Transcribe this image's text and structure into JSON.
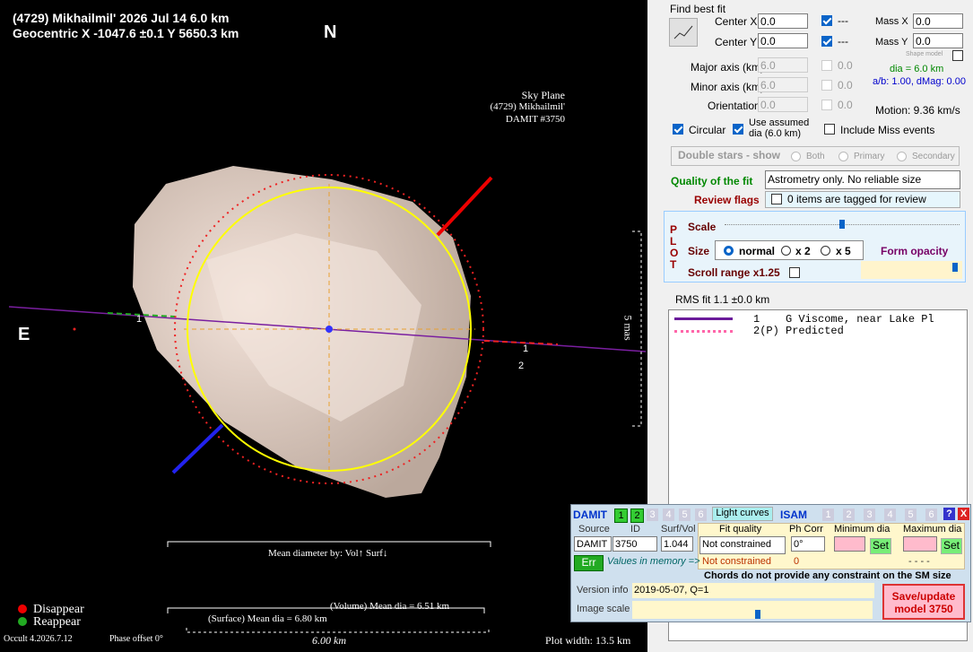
{
  "plot": {
    "header_line1": "(4729) Mikhailmil'  2026 Jul 14   6.0 km",
    "header_line2": "Geocentric X -1047.6 ±0.1  Y 5650.3 km",
    "north": "N",
    "east": "E",
    "sky_plane": "Sky Plane",
    "sky_object": "(4729) Mikhailmil'",
    "sky_model": "DAMIT #3750",
    "scale_label": "5 mas",
    "chord_1a": "1",
    "chord_1b": "1",
    "chord_2": "2",
    "mean_diameter_by": "Mean diameter by: Vol↑ Surf↓",
    "volume_dia": "(Volume) Mean dia = 6.51 km",
    "surface_dia": "(Surface) Mean dia = 6.80 km",
    "scale_km": "6.00 km",
    "disappear": "Disappear",
    "reappear": "Reappear",
    "version": "Occult 4.2026.7.12",
    "phase_offset": "Phase offset 0°",
    "plot_width": "Plot width: 13.5 km"
  },
  "controls": {
    "find_best_fit": "Find best fit",
    "center_x": "Center X",
    "center_x_val": "0.0",
    "center_x_unc": "---",
    "mass_x": "Mass X",
    "mass_x_val": "0.0",
    "center_y": "Center Y",
    "center_y_val": "0.0",
    "center_y_unc": "---",
    "mass_y": "Mass Y",
    "mass_y_val": "0.0",
    "shape_model": "Shape model",
    "dia": "dia = 6.0 km",
    "ab_dmag": "a/b: 1.00, dMag: 0.00",
    "major_axis": "Major axis (km)",
    "major_val": "6.0",
    "major_unc": "0.0",
    "minor_axis": "Minor axis (km)",
    "minor_val": "6.0",
    "minor_unc": "0.0",
    "orientation": "Orientation",
    "orient_val": "0.0",
    "orient_unc": "0.0",
    "motion": "Motion: 9.36 km/s",
    "circular": "Circular",
    "use_assumed": "Use assumed dia (6.0 km)",
    "include_miss": "Include Miss events",
    "double_stars": "Double stars - show",
    "both": "Both",
    "primary": "Primary",
    "secondary": "Secondary",
    "quality": "Quality of the fit",
    "quality_val": "Astrometry only. No reliable size",
    "review_flags": "Review flags",
    "review_val": "0 items are tagged for review",
    "plot_p": "P",
    "plot_l": "L",
    "plot_o": "O",
    "plot_t": "T",
    "scale": "Scale",
    "size": "Size",
    "normal": "normal",
    "x2": "x 2",
    "x5": "x 5",
    "form_opacity": "Form opacity",
    "scroll_range": "Scroll range x1.25",
    "rms": "RMS fit 1.1 ±0.0 km",
    "legend_1": "1    G Viscome, near Lake Pl",
    "legend_2": "2(P) Predicted"
  },
  "damit": {
    "damit": "DAMIT",
    "d1": "1",
    "d2": "2",
    "d3": "3",
    "d4": "4",
    "d5": "5",
    "d6": "6",
    "light_curves": "Light curves",
    "isam": "ISAM",
    "i1": "1",
    "i2": "2",
    "i3": "3",
    "i4": "4",
    "i5": "5",
    "i6": "6",
    "help": "?",
    "close": "X",
    "source": "Source",
    "id": "ID",
    "surf_vol": "Surf/Vol",
    "fit_quality": "Fit quality",
    "ph_corr": "Ph Corr",
    "min_dia": "Minimum dia",
    "max_dia": "Maximum dia",
    "source_val": "DAMIT",
    "id_val": "3750",
    "surf_vol_val": "1.044",
    "fit_val": "Not constrained",
    "ph_val": "0°",
    "set1": "Set",
    "set2": "Set",
    "err": "Err",
    "memory": "Values in memory =>",
    "mem_fit": "Not constrained",
    "mem_ph": "0",
    "mem_dia": "- - - -",
    "chords_note": "Chords do not provide any constraint on the SM size",
    "version_info": "Version info",
    "version_val": "2019-05-07, Q=1",
    "image_scale": "Image scale",
    "save": "Save/update model 3750"
  }
}
